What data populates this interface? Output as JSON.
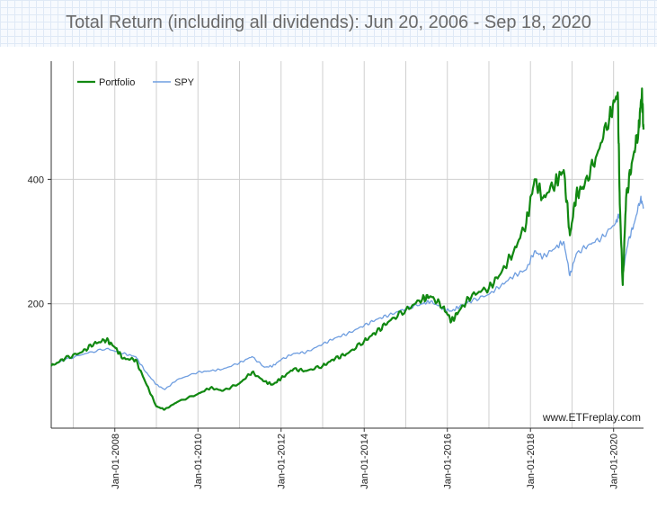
{
  "chart_data": {
    "type": "line",
    "title": "Total Return (including all dividends): Jun 20, 2006 - Sep 18, 2020",
    "xlabel": "",
    "ylabel": "",
    "x_range": [
      "2006-06-20",
      "2020-09-18"
    ],
    "ylim": [
      0,
      590
    ],
    "y_ticks": [
      200,
      400
    ],
    "x_ticks": [
      "Jan-01-2008",
      "Jan-01-2010",
      "Jan-01-2012",
      "Jan-01-2014",
      "Jan-01-2016",
      "Jan-01-2018",
      "Jan-01-2020"
    ],
    "grid": true,
    "legend_position": "top-left",
    "watermark": "www.ETFreplay.com",
    "series": [
      {
        "name": "Portfolio",
        "color": "#118811",
        "x": [
          2006.47,
          2006.8,
          2007.2,
          2007.5,
          2007.8,
          2008.0,
          2008.2,
          2008.5,
          2008.75,
          2009.0,
          2009.2,
          2009.5,
          2010.0,
          2010.3,
          2010.6,
          2011.0,
          2011.3,
          2011.6,
          2011.8,
          2012.0,
          2012.3,
          2012.6,
          2013.0,
          2013.3,
          2013.6,
          2014.0,
          2014.3,
          2014.6,
          2015.0,
          2015.4,
          2015.6,
          2015.9,
          2016.1,
          2016.3,
          2016.6,
          2017.0,
          2017.3,
          2017.6,
          2017.9,
          2018.1,
          2018.3,
          2018.6,
          2018.8,
          2018.95,
          2019.1,
          2019.3,
          2019.6,
          2019.9,
          2020.1,
          2020.15,
          2020.22,
          2020.3,
          2020.45,
          2020.6,
          2020.68,
          2020.72
        ],
        "values": [
          100,
          112,
          122,
          136,
          142,
          130,
          112,
          110,
          72,
          35,
          30,
          42,
          55,
          65,
          60,
          72,
          90,
          75,
          70,
          80,
          95,
          92,
          100,
          112,
          120,
          140,
          155,
          172,
          190,
          208,
          212,
          195,
          172,
          190,
          215,
          225,
          250,
          285,
          330,
          400,
          370,
          395,
          415,
          310,
          375,
          390,
          440,
          500,
          540,
          360,
          230,
          370,
          430,
          480,
          540,
          480
        ]
      },
      {
        "name": "SPY",
        "color": "#6f9ee0",
        "x": [
          2006.47,
          2006.8,
          2007.3,
          2007.8,
          2008.2,
          2008.5,
          2008.75,
          2009.0,
          2009.2,
          2009.5,
          2010.0,
          2010.3,
          2010.6,
          2011.0,
          2011.3,
          2011.6,
          2011.8,
          2012.0,
          2012.3,
          2012.6,
          2013.0,
          2013.3,
          2013.6,
          2014.0,
          2014.3,
          2014.6,
          2015.0,
          2015.4,
          2015.6,
          2015.9,
          2016.1,
          2016.3,
          2016.6,
          2017.0,
          2017.3,
          2017.6,
          2017.9,
          2018.1,
          2018.3,
          2018.6,
          2018.8,
          2018.95,
          2019.1,
          2019.4,
          2019.7,
          2020.05,
          2020.15,
          2020.22,
          2020.35,
          2020.5,
          2020.65,
          2020.72
        ],
        "values": [
          100,
          110,
          120,
          128,
          120,
          115,
          90,
          70,
          62,
          78,
          90,
          92,
          95,
          105,
          115,
          98,
          100,
          110,
          120,
          122,
          135,
          145,
          152,
          165,
          175,
          182,
          192,
          200,
          204,
          192,
          188,
          196,
          205,
          215,
          230,
          245,
          255,
          285,
          275,
          290,
          300,
          245,
          280,
          295,
          305,
          330,
          345,
          250,
          300,
          330,
          370,
          355
        ]
      }
    ]
  }
}
